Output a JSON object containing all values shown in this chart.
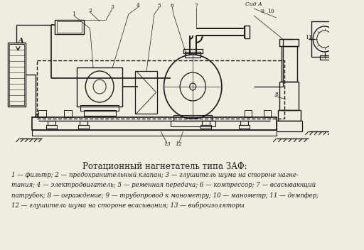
{
  "title": "Ротационный нагнетатель типа ЗАФ:",
  "description_lines": [
    "1 — фильтр; 2 — предохранительный клапан; 3 — глушитель шума на стороне нагне-",
    "тания; 4 — электродвигатель; 5 — ременная передача; 6 — компрессор; 7 — всасывающий",
    "патрубок; 8 — ограждение; 9 — трубопровод к манометру; 10 — манометр; 11 — демпфер;",
    "12 — глушитель шума на стороне всасывания; 13 — виброизоляторы"
  ],
  "bg_color": "#f0ece0",
  "line_color": "#1a1a1a",
  "text_color": "#1a1a1a",
  "fig_width": 5.12,
  "fig_height": 3.52,
  "dpi": 100
}
